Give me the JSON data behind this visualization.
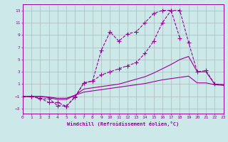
{
  "xlabel": "Windchill (Refroidissement éolien,°C)",
  "bg_color": "#cce8e8",
  "line_color": "#990099",
  "grid_color": "#aabbbb",
  "xlim": [
    0,
    23
  ],
  "ylim": [
    -3.8,
    14.0
  ],
  "xticks": [
    0,
    1,
    2,
    3,
    4,
    5,
    6,
    7,
    8,
    9,
    10,
    11,
    12,
    13,
    14,
    15,
    16,
    17,
    18,
    19,
    20,
    21,
    22,
    23
  ],
  "yticks": [
    -3,
    -1,
    1,
    3,
    5,
    7,
    9,
    11,
    13
  ],
  "line1_y": [
    -1.0,
    -1.0,
    -1.4,
    -1.4,
    -2.5,
    -2.6,
    -1.1,
    1.2,
    1.5,
    6.5,
    9.5,
    8.0,
    9.2,
    9.5,
    11.0,
    12.5,
    13.0,
    13.0,
    8.5,
    null,
    null,
    null,
    null,
    null
  ],
  "line2_y": [
    -1.0,
    -1.0,
    -1.3,
    -2.0,
    -2.0,
    -2.6,
    -1.0,
    1.2,
    1.5,
    2.5,
    3.0,
    3.5,
    4.0,
    4.5,
    6.0,
    8.0,
    11.0,
    13.0,
    13.0,
    7.8,
    3.0,
    3.2,
    1.0,
    0.9
  ],
  "line3_y": [
    -1.0,
    -1.0,
    -1.0,
    -1.2,
    -1.5,
    -1.5,
    -0.8,
    0.2,
    0.4,
    0.6,
    0.8,
    1.0,
    1.4,
    1.8,
    2.2,
    2.8,
    3.5,
    4.2,
    5.0,
    5.5,
    3.0,
    3.0,
    1.0,
    0.9
  ],
  "line4_y": [
    -1.0,
    -1.0,
    -1.0,
    -1.1,
    -1.3,
    -1.3,
    -0.8,
    -0.3,
    -0.1,
    0.1,
    0.3,
    0.5,
    0.7,
    0.9,
    1.1,
    1.4,
    1.7,
    1.9,
    2.1,
    2.3,
    1.2,
    1.2,
    0.9,
    0.8
  ],
  "line1_has_markers": true,
  "line2_has_markers": true,
  "line3_has_markers": false,
  "line4_has_markers": false
}
